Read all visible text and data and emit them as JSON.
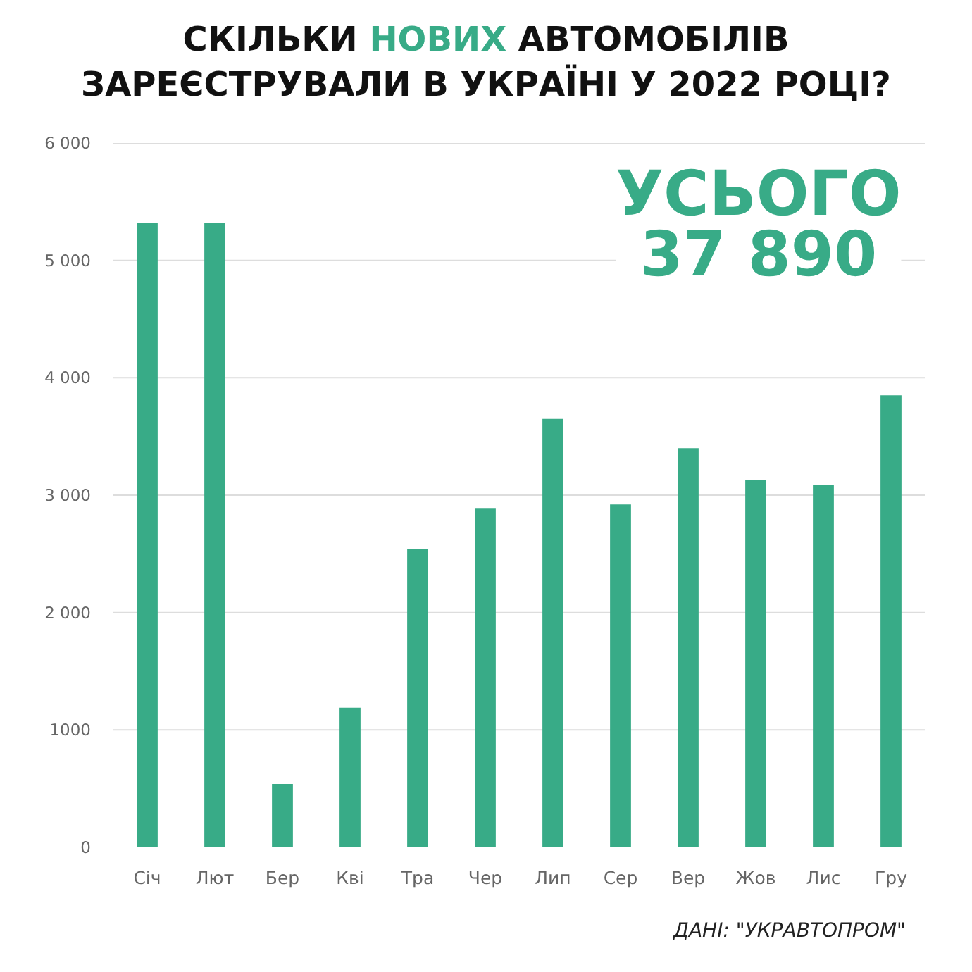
{
  "chart_data": {
    "type": "bar",
    "title": "СКІЛЬКИ НОВИХ АВТОМОБІЛІВ\nЗАРЕЄСТРУВАЛИ В УКРАЇНІ У 2022 РОЦІ?",
    "categories": [
      "Січ",
      "Лют",
      "Бер",
      "Кві",
      "Тра",
      "Чер",
      "Лип",
      "Сер",
      "Вер",
      "Жов",
      "Лис",
      "Гру"
    ],
    "values": [
      5320,
      5320,
      540,
      1190,
      2540,
      2890,
      3650,
      2920,
      3400,
      3130,
      3090,
      3850
    ],
    "color": "#38ab87",
    "ylim": [
      0,
      6000
    ],
    "yticks": [
      0,
      1000,
      {
        "value": 2000,
        "label": "2 000"
      },
      {
        "value": 3000,
        "label": "3 000"
      },
      {
        "value": 4000,
        "label": "4 000"
      },
      {
        "value": 5000,
        "label": "5 000"
      },
      {
        "value": 6000,
        "label": "6 000"
      }
    ],
    "grid": "y",
    "annotations": [
      "УСЬОГО\n37 890",
      "ДАНІ: \"УКРАВТОПРОМ\""
    ]
  }
}
